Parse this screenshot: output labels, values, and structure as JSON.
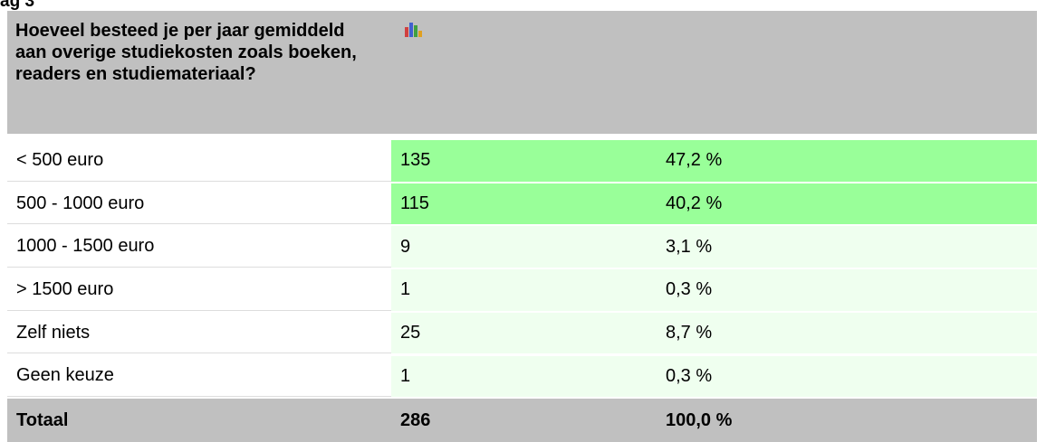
{
  "heading": "ag 3",
  "table": {
    "header": "Hoeveel besteed je per jaar gemiddeld aan overige studiekosten zoals boeken, readers en studiemateriaal?",
    "rows": [
      {
        "label": "< 500 euro",
        "count": 135,
        "percent": "47,2 %",
        "color": "#99ff99"
      },
      {
        "label": "500 - 1000 euro",
        "count": 115,
        "percent": "40,2 %",
        "color": "#99ff99"
      },
      {
        "label": "1000 - 1500 euro",
        "count": 9,
        "percent": "3,1 %",
        "color": "#efffef"
      },
      {
        "label": "> 1500 euro",
        "count": 1,
        "percent": "0,3 %",
        "color": "#efffef"
      },
      {
        "label": "Zelf niets",
        "count": 25,
        "percent": "8,7 %",
        "color": "#efffef"
      },
      {
        "label": "Geen keuze",
        "count": 1,
        "percent": "0,3 %",
        "color": "#efffef"
      }
    ],
    "total": {
      "label": "Totaal",
      "count": 286,
      "percent": "100,0 %"
    }
  }
}
